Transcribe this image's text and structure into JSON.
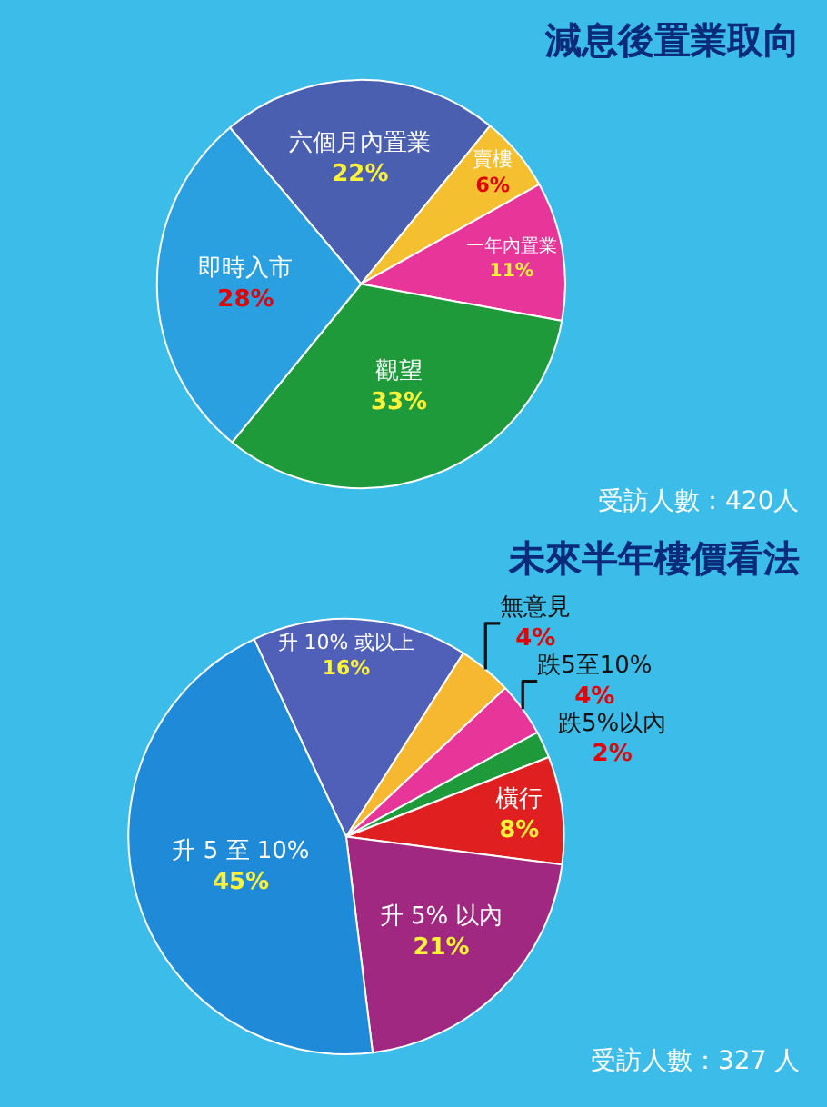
{
  "chart_data": [
    {
      "type": "pie",
      "title": "減息後置業取向",
      "categories": [
        "六個月內置業",
        "賣樓",
        "一年內置業",
        "觀望",
        "即時入市"
      ],
      "values": [
        22,
        6,
        11,
        33,
        28
      ],
      "value_labels": [
        "22%",
        "6%",
        "11%",
        "33%",
        "28%"
      ],
      "colors": [
        "#4a5fb0",
        "#f5c030",
        "#e8359a",
        "#1e9a3a",
        "#2aa0e0"
      ],
      "annotations": [
        "受訪人數：420人"
      ]
    },
    {
      "type": "pie",
      "title": "未來半年樓價看法",
      "categories": [
        "升 10% 或以上",
        "無意見",
        "跌5至10%",
        "跌5%以內",
        "橫行",
        "升 5% 以內",
        "升 5 至 10%"
      ],
      "values": [
        16,
        4,
        4,
        2,
        8,
        21,
        45
      ],
      "value_labels": [
        "16%",
        "4%",
        "4%",
        "2%",
        "8%",
        "21%",
        "45%"
      ],
      "colors": [
        "#5060b8",
        "#f5b830",
        "#e8359a",
        "#1e9a3a",
        "#e02020",
        "#a02880",
        "#1e8ad8"
      ],
      "annotations": [
        "受訪人數：327 人"
      ]
    }
  ]
}
